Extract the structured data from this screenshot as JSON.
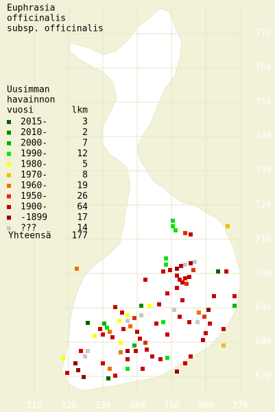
{
  "title": [
    "Euphrasia",
    "officinalis",
    "subsp. officinalis"
  ],
  "legend": {
    "heading": [
      "Uusimman",
      "havainnon"
    ],
    "col_year": "vuosi",
    "col_count": "lkm",
    "rows": [
      {
        "label": "2015-",
        "count": 3,
        "color": "#006400"
      },
      {
        "label": "2010-",
        "count": 2,
        "color": "#008c00"
      },
      {
        "label": "2000-",
        "count": 7,
        "color": "#00b400"
      },
      {
        "label": "1990-",
        "count": 12,
        "color": "#00e600"
      },
      {
        "label": "1980-",
        "count": 5,
        "color": "#ffff00"
      },
      {
        "label": "1970-",
        "count": 8,
        "color": "#f0c000"
      },
      {
        "label": "1960-",
        "count": 19,
        "color": "#f07000"
      },
      {
        "label": "1950-",
        "count": 26,
        "color": "#e03000"
      },
      {
        "label": "1900-",
        "count": 64,
        "color": "#c80000"
      },
      {
        "label": "-1899",
        "count": 17,
        "color": "#960000"
      },
      {
        "label": "???",
        "count": 14,
        "color": "#c8c8c8"
      }
    ],
    "total_label": "Yhteensä",
    "total": 177
  },
  "axes": {
    "y_labels": [
      "770",
      "760",
      "750",
      "740",
      "730",
      "720",
      "710",
      "700",
      "690",
      "680",
      "670"
    ],
    "x_labels": [
      "310",
      "320",
      "330",
      "340",
      "350",
      "360",
      "370"
    ]
  }
}
